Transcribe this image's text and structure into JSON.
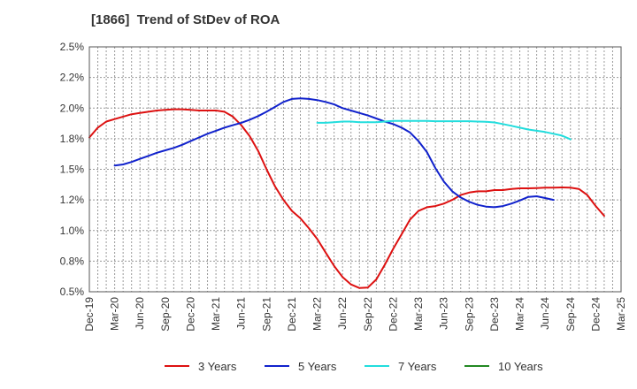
{
  "chart_data": {
    "type": "line",
    "title": "[1866]  Trend of StDev of ROA",
    "xlabel": "",
    "ylabel": "",
    "x_ticks": [
      "Dec-19",
      "Mar-20",
      "Jun-20",
      "Sep-20",
      "Dec-20",
      "Mar-21",
      "Jun-21",
      "Sep-21",
      "Dec-21",
      "Mar-22",
      "Jun-22",
      "Sep-22",
      "Dec-22",
      "Mar-23",
      "Jun-23",
      "Sep-23",
      "Dec-23",
      "Mar-24",
      "Jun-24",
      "Sep-24",
      "Dec-24",
      "Mar-25"
    ],
    "y_ticks": [
      "0.5%",
      "0.8%",
      "1.0%",
      "1.2%",
      "1.5%",
      "1.8%",
      "2.0%",
      "2.2%",
      "2.5%"
    ],
    "ylim": [
      0.5,
      2.5
    ],
    "grid": true,
    "legend_position": "bottom",
    "series": [
      {
        "name": "3 Years",
        "color": "#dd1111",
        "points": [
          [
            0,
            1.76
          ],
          [
            1,
            1.84
          ],
          [
            2,
            1.89
          ],
          [
            3,
            1.91
          ],
          [
            4,
            1.93
          ],
          [
            5,
            1.95
          ],
          [
            6,
            1.96
          ],
          [
            7,
            1.97
          ],
          [
            8,
            1.98
          ],
          [
            9,
            1.985
          ],
          [
            10,
            1.99
          ],
          [
            11,
            1.99
          ],
          [
            12,
            1.985
          ],
          [
            13,
            1.98
          ],
          [
            14,
            1.98
          ],
          [
            15,
            1.98
          ],
          [
            16,
            1.97
          ],
          [
            17,
            1.93
          ],
          [
            18,
            1.86
          ],
          [
            19,
            1.77
          ],
          [
            20,
            1.65
          ],
          [
            21,
            1.5
          ],
          [
            22,
            1.36
          ],
          [
            23,
            1.25
          ],
          [
            24,
            1.16
          ],
          [
            25,
            1.1
          ],
          [
            26,
            1.02
          ],
          [
            27,
            0.93
          ],
          [
            28,
            0.82
          ],
          [
            29,
            0.71
          ],
          [
            30,
            0.62
          ],
          [
            31,
            0.56
          ],
          [
            32,
            0.53
          ],
          [
            33,
            0.535
          ],
          [
            34,
            0.6
          ],
          [
            35,
            0.72
          ],
          [
            36,
            0.85
          ],
          [
            37,
            0.97
          ],
          [
            38,
            1.09
          ],
          [
            39,
            1.16
          ],
          [
            40,
            1.19
          ],
          [
            41,
            1.2
          ],
          [
            42,
            1.22
          ],
          [
            43,
            1.25
          ],
          [
            44,
            1.29
          ],
          [
            45,
            1.31
          ],
          [
            46,
            1.32
          ],
          [
            47,
            1.32
          ],
          [
            48,
            1.33
          ],
          [
            49,
            1.33
          ],
          [
            50,
            1.34
          ],
          [
            51,
            1.345
          ],
          [
            52,
            1.345
          ],
          [
            53,
            1.347
          ],
          [
            54,
            1.35
          ],
          [
            55,
            1.35
          ],
          [
            56,
            1.352
          ],
          [
            57,
            1.35
          ],
          [
            58,
            1.34
          ],
          [
            59,
            1.29
          ],
          [
            60,
            1.2
          ],
          [
            61,
            1.12
          ]
        ]
      },
      {
        "name": "5 Years",
        "color": "#1122cc",
        "points": [
          [
            3,
            1.53
          ],
          [
            4,
            1.54
          ],
          [
            5,
            1.56
          ],
          [
            6,
            1.585
          ],
          [
            7,
            1.61
          ],
          [
            8,
            1.635
          ],
          [
            9,
            1.655
          ],
          [
            10,
            1.675
          ],
          [
            11,
            1.7
          ],
          [
            12,
            1.73
          ],
          [
            13,
            1.76
          ],
          [
            14,
            1.79
          ],
          [
            15,
            1.815
          ],
          [
            16,
            1.84
          ],
          [
            17,
            1.86
          ],
          [
            18,
            1.88
          ],
          [
            19,
            1.905
          ],
          [
            20,
            1.935
          ],
          [
            21,
            1.97
          ],
          [
            22,
            2.01
          ],
          [
            23,
            2.05
          ],
          [
            24,
            2.075
          ],
          [
            25,
            2.08
          ],
          [
            26,
            2.075
          ],
          [
            27,
            2.065
          ],
          [
            28,
            2.05
          ],
          [
            29,
            2.03
          ],
          [
            30,
            2.0
          ],
          [
            31,
            1.98
          ],
          [
            32,
            1.96
          ],
          [
            33,
            1.94
          ],
          [
            34,
            1.915
          ],
          [
            35,
            1.89
          ],
          [
            36,
            1.87
          ],
          [
            37,
            1.84
          ],
          [
            38,
            1.8
          ],
          [
            39,
            1.73
          ],
          [
            40,
            1.64
          ],
          [
            41,
            1.51
          ],
          [
            42,
            1.4
          ],
          [
            43,
            1.32
          ],
          [
            44,
            1.27
          ],
          [
            45,
            1.235
          ],
          [
            46,
            1.21
          ],
          [
            47,
            1.195
          ],
          [
            48,
            1.19
          ],
          [
            49,
            1.2
          ],
          [
            50,
            1.22
          ],
          [
            51,
            1.245
          ],
          [
            52,
            1.275
          ],
          [
            53,
            1.28
          ],
          [
            54,
            1.265
          ],
          [
            55,
            1.25
          ]
        ]
      },
      {
        "name": "7 Years",
        "color": "#22dddd",
        "points": [
          [
            27,
            1.88
          ],
          [
            28,
            1.88
          ],
          [
            29,
            1.885
          ],
          [
            30,
            1.89
          ],
          [
            31,
            1.89
          ],
          [
            32,
            1.885
          ],
          [
            33,
            1.885
          ],
          [
            34,
            1.885
          ],
          [
            35,
            1.89
          ],
          [
            36,
            1.895
          ],
          [
            37,
            1.895
          ],
          [
            38,
            1.895
          ],
          [
            39,
            1.895
          ],
          [
            40,
            1.895
          ],
          [
            41,
            1.893
          ],
          [
            42,
            1.893
          ],
          [
            43,
            1.893
          ],
          [
            44,
            1.893
          ],
          [
            45,
            1.893
          ],
          [
            46,
            1.89
          ],
          [
            47,
            1.888
          ],
          [
            48,
            1.883
          ],
          [
            49,
            1.87
          ],
          [
            50,
            1.855
          ],
          [
            51,
            1.84
          ],
          [
            52,
            1.825
          ],
          [
            53,
            1.815
          ],
          [
            54,
            1.805
          ],
          [
            55,
            1.79
          ],
          [
            56,
            1.775
          ],
          [
            57,
            1.745
          ]
        ]
      },
      {
        "name": "10 Years",
        "color": "#228822",
        "points": []
      }
    ]
  }
}
